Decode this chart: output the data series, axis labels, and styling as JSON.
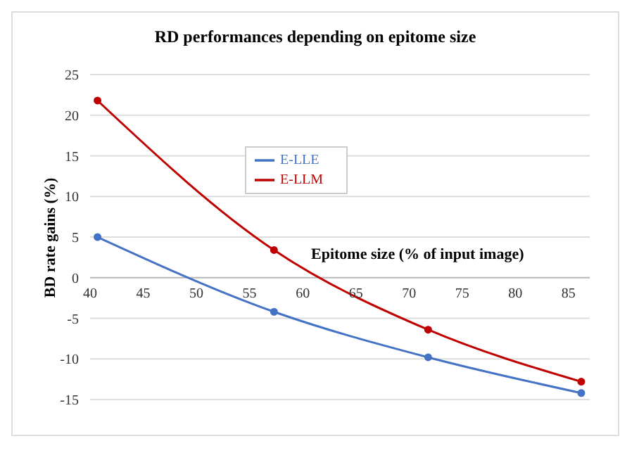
{
  "chart_data": {
    "type": "line",
    "title": "RD performances depending on epitome size",
    "xlabel": "Epitome size (% of input image)",
    "ylabel": "BD rate gains (%)",
    "x": [
      40.7,
      57.3,
      71.8,
      86.2
    ],
    "series": [
      {
        "name": "E-LLE",
        "color": "#4472c4",
        "values": [
          5,
          -4.2,
          -9.8,
          -14.2
        ]
      },
      {
        "name": "E-LLM",
        "color": "#c00000",
        "values": [
          21.8,
          3.4,
          -6.4,
          -12.8
        ]
      }
    ],
    "xlim": [
      40,
      87
    ],
    "xticks": [
      40,
      45,
      50,
      55,
      60,
      65,
      70,
      75,
      80,
      85
    ],
    "ylim": [
      -15,
      25
    ],
    "yticks": [
      -15,
      -10,
      -5,
      0,
      5,
      10,
      15,
      20,
      25
    ],
    "grid": "y",
    "legend": "top left",
    "marker": "circle",
    "line_style": "solid"
  }
}
